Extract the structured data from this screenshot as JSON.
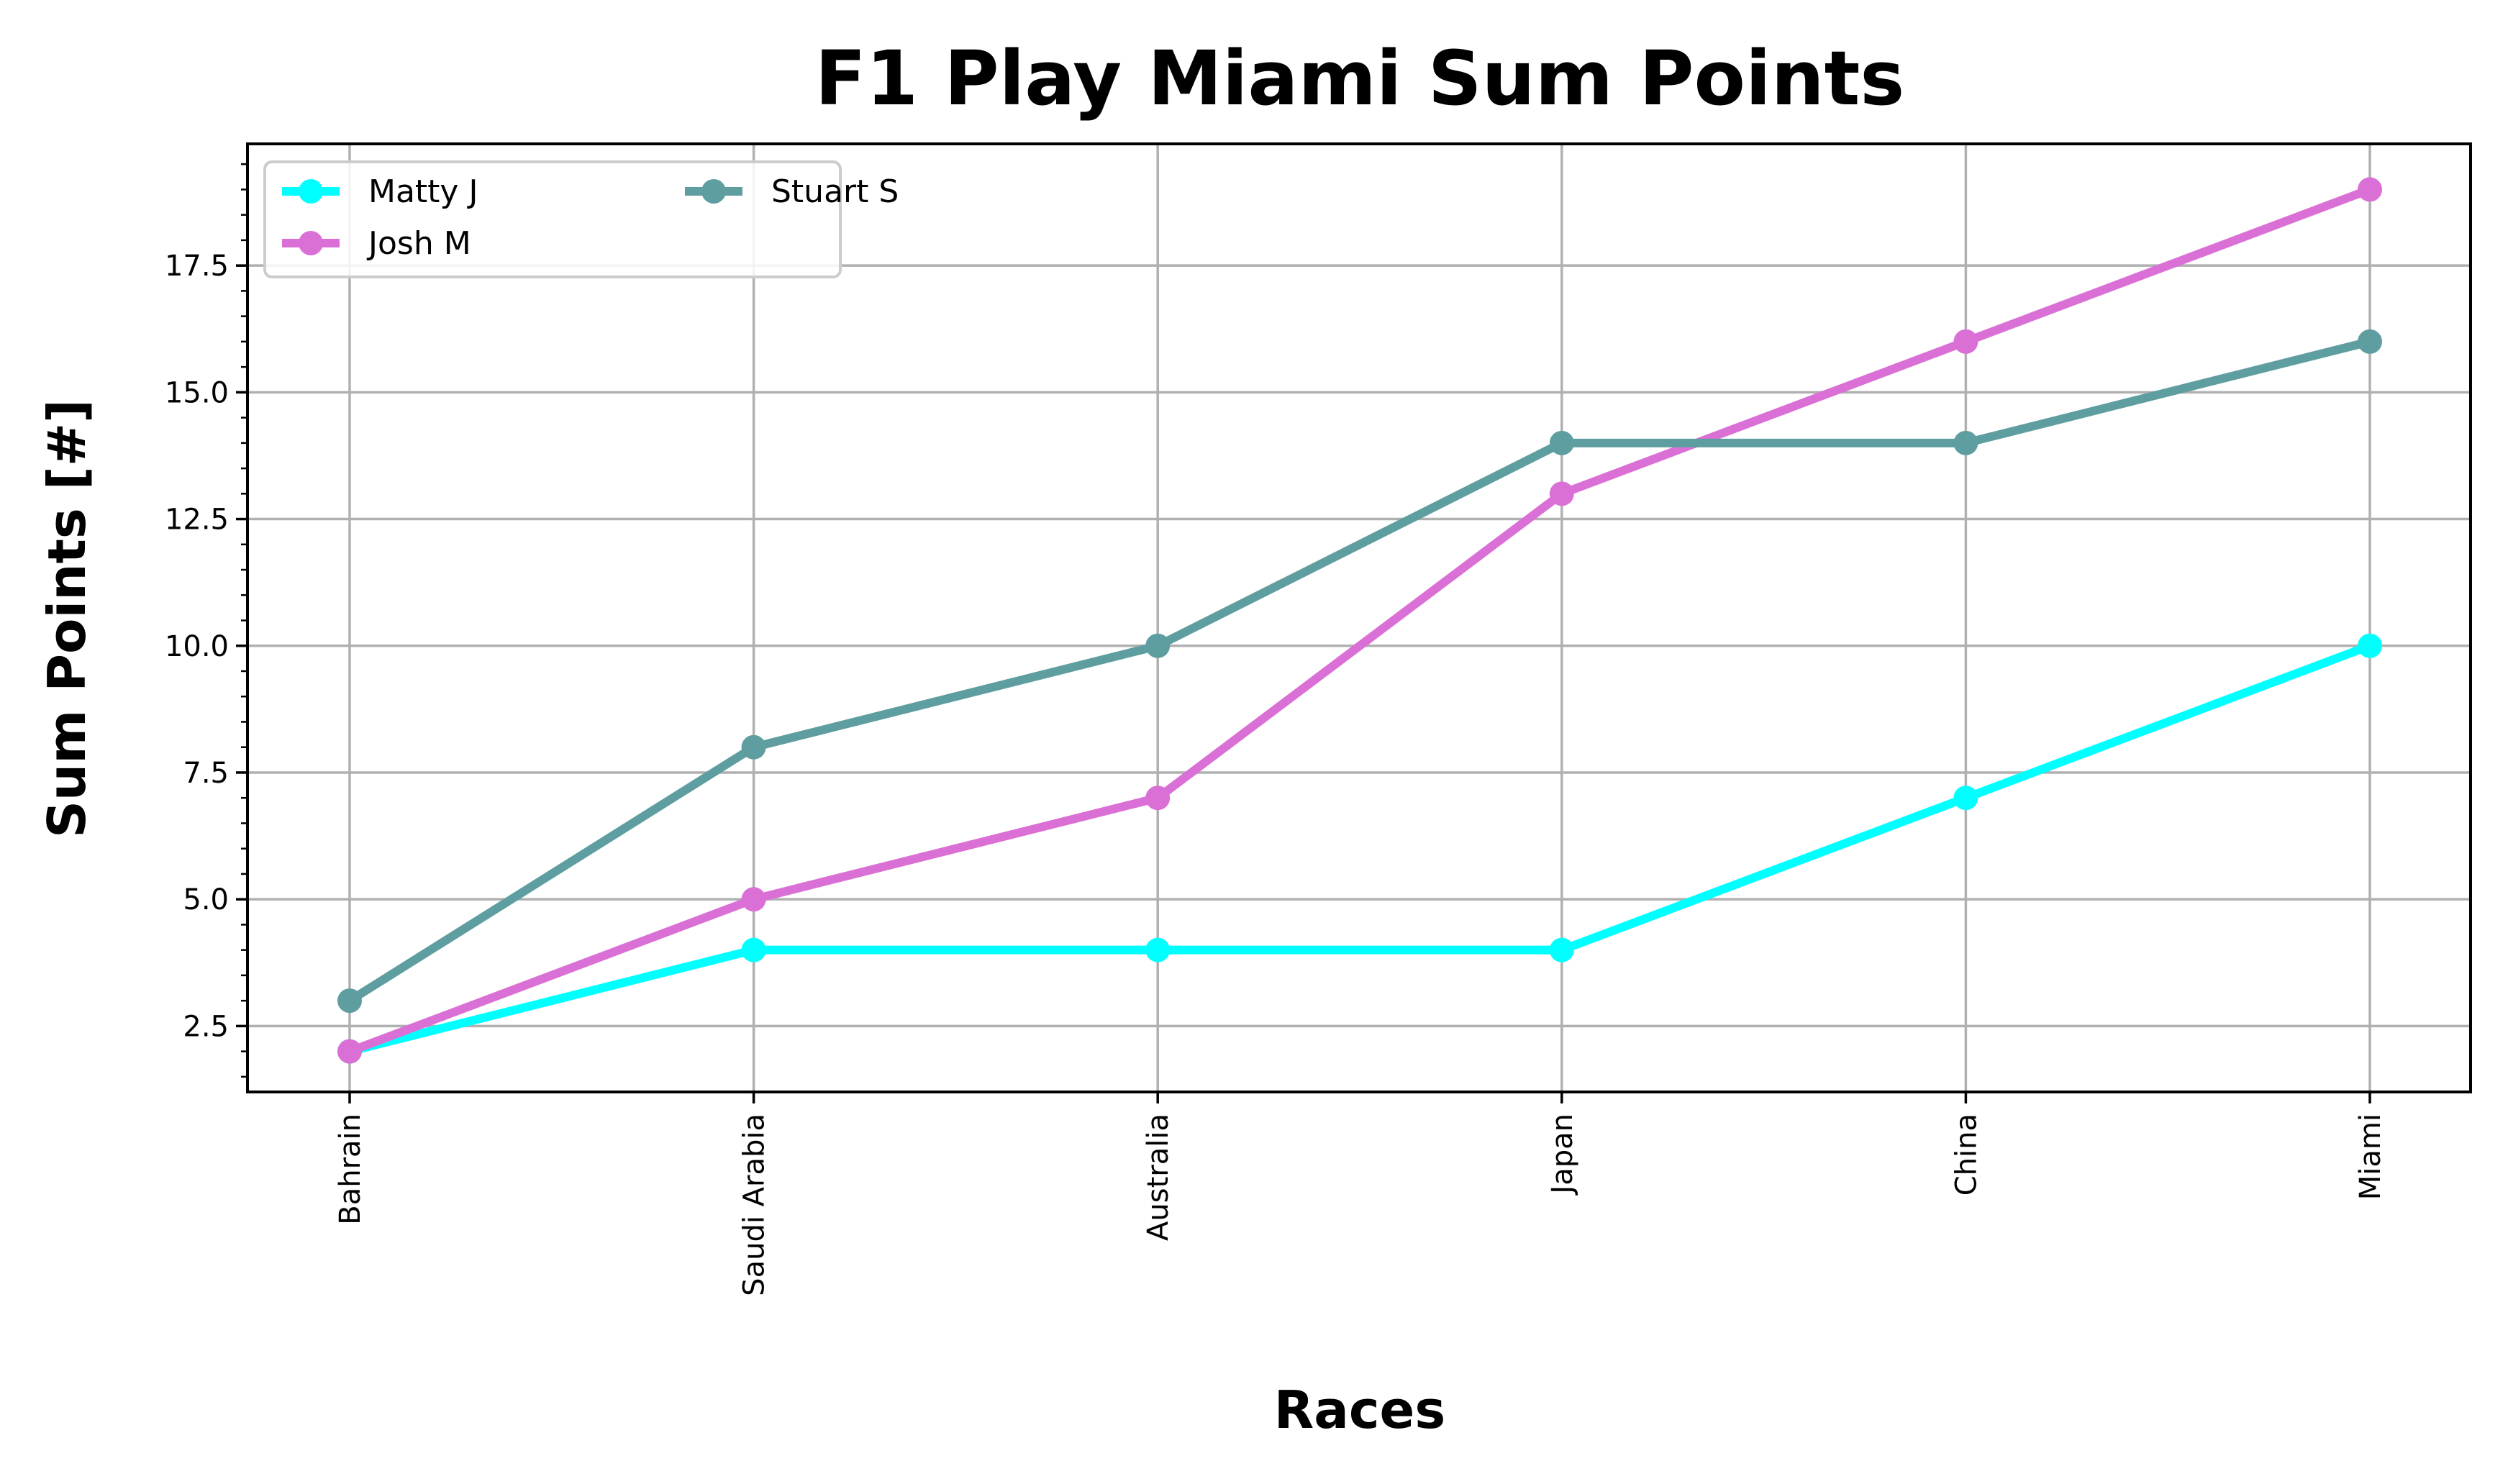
{
  "chart_data": {
    "type": "line",
    "title": "F1 Play Miami Sum Points",
    "xlabel": "Races",
    "ylabel": "Sum Points [#]",
    "categories": [
      "Bahrain",
      "Saudi Arabia",
      "Australia",
      "Japan",
      "China",
      "Miami"
    ],
    "yticks": [
      "2.5",
      "5.0",
      "7.5",
      "10.0",
      "12.5",
      "15.0",
      "17.5"
    ],
    "ylim": [
      1.2,
      19.9
    ],
    "grid": true,
    "legend_position": "top-left",
    "series": [
      {
        "name": "Matty J",
        "color": "#00ffff",
        "values": [
          2,
          4,
          4,
          4,
          7,
          10
        ]
      },
      {
        "name": "Josh M",
        "color": "#da70d6",
        "values": [
          2,
          5,
          7,
          13,
          16,
          19
        ]
      },
      {
        "name": "Stuart S",
        "color": "#5f9ea0",
        "values": [
          3,
          8,
          10,
          14,
          14,
          16
        ]
      }
    ]
  }
}
